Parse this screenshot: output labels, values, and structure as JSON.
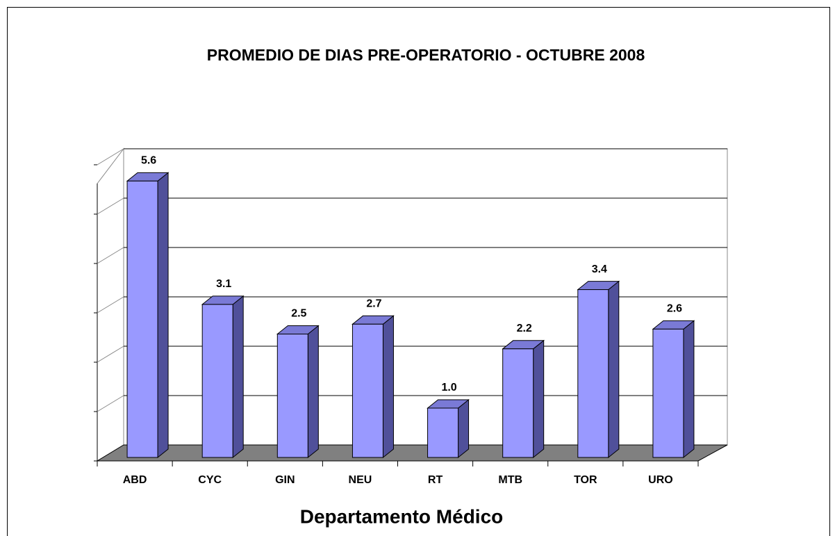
{
  "chart_data": {
    "type": "bar3d",
    "title": "PROMEDIO DE DIAS PRE-OPERATORIO - OCTUBRE 2008",
    "x_label": "Departamento Médico",
    "categories": [
      "ABD",
      "CYC",
      "GIN",
      "NEU",
      "RT",
      "MTB",
      "TOR",
      "URO"
    ],
    "values": [
      5.6,
      3.1,
      2.5,
      2.7,
      1.0,
      2.2,
      3.4,
      2.6
    ],
    "value_labels": [
      "5.6",
      "3.1",
      "2.5",
      "2.7",
      "1.0",
      "2.2",
      "3.4",
      "2.6"
    ],
    "color": "#9999ff",
    "ylim": [
      0,
      6
    ],
    "yticks": [
      0,
      1,
      2,
      3,
      4,
      5,
      6
    ],
    "grid": true
  }
}
